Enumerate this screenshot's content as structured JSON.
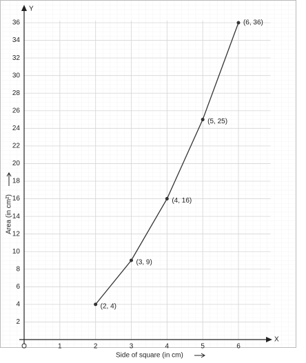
{
  "chart_data": {
    "type": "line",
    "x_axis_name": "X",
    "y_axis_name": "Y",
    "xlabel": "Side of square (in cm)",
    "ylabel": "Area (in cm²)",
    "x": [
      2,
      3,
      4,
      5,
      6
    ],
    "values": [
      4,
      9,
      16,
      25,
      36
    ],
    "value_labels": [
      "(2, 4)",
      "(3, 9)",
      "(4, 16)",
      "(5, 25)",
      "(6, 36)"
    ],
    "color": "#333333",
    "xlim": [
      0,
      6.9
    ],
    "ylim": [
      0,
      37.8
    ],
    "xticks": [
      {
        "value": 0,
        "label": "O"
      },
      1,
      2,
      3,
      4,
      5,
      6
    ],
    "yticks": [
      2,
      4,
      6,
      8,
      10,
      12,
      14,
      16,
      18,
      20,
      22,
      24,
      26,
      28,
      30,
      32,
      34,
      36
    ],
    "grid": true
  }
}
